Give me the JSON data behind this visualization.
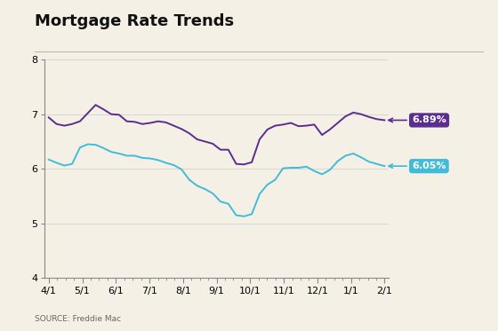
{
  "title": "Mortgage Rate Trends",
  "background_color": "#f5f0e6",
  "source_text": "SOURCE: Freddie Mac",
  "ylim": [
    4,
    8
  ],
  "yticks": [
    4,
    5,
    6,
    7,
    8
  ],
  "xlabel_ticks": [
    "4/1",
    "5/1",
    "6/1",
    "7/1",
    "8/1",
    "9/1",
    "10/1",
    "11/1",
    "12/1",
    "1/1",
    "2/1"
  ],
  "color_30yr": "#5b2d8e",
  "color_15yr": "#40bcd8",
  "end_label_30yr": "6.89%",
  "end_label_15yr": "6.05%",
  "rate_30yr": [
    6.94,
    6.82,
    6.79,
    6.82,
    6.87,
    7.02,
    7.17,
    7.09,
    7.0,
    6.99,
    6.87,
    6.86,
    6.82,
    6.84,
    6.87,
    6.85,
    6.79,
    6.73,
    6.65,
    6.54,
    6.5,
    6.46,
    6.35,
    6.35,
    6.09,
    6.08,
    6.12,
    6.54,
    6.72,
    6.79,
    6.81,
    6.84,
    6.78,
    6.79,
    6.81,
    6.62,
    6.72,
    6.84,
    6.96,
    7.03,
    7.0,
    6.95,
    6.91,
    6.89
  ],
  "rate_15yr": [
    6.17,
    6.11,
    6.06,
    6.09,
    6.39,
    6.45,
    6.44,
    6.38,
    6.31,
    6.28,
    6.24,
    6.24,
    6.2,
    6.19,
    6.16,
    6.11,
    6.07,
    5.99,
    5.8,
    5.69,
    5.63,
    5.55,
    5.4,
    5.36,
    5.15,
    5.13,
    5.17,
    5.54,
    5.71,
    5.8,
    6.01,
    6.02,
    6.02,
    6.04,
    5.96,
    5.9,
    5.98,
    6.14,
    6.24,
    6.28,
    6.21,
    6.13,
    6.09,
    6.05
  ],
  "title_fontsize": 13,
  "axis_tick_fontsize": 8,
  "legend_fontsize": 7.5
}
